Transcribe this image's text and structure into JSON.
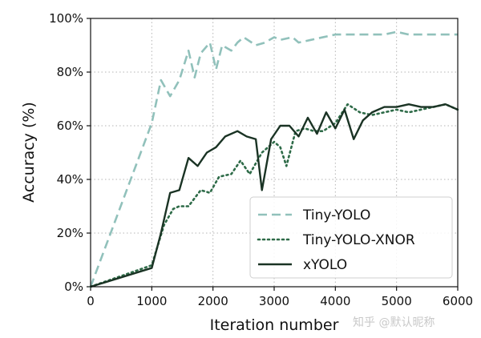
{
  "chart_data": {
    "type": "line",
    "title": "",
    "xlabel": "Iteration number",
    "ylabel": "Accuracy (%)",
    "xlim": [
      0,
      6000
    ],
    "ylim": [
      0,
      100
    ],
    "xticks": [
      0,
      1000,
      2000,
      3000,
      4000,
      5000,
      6000
    ],
    "yticks": [
      0,
      20,
      40,
      60,
      80,
      100
    ],
    "xtick_labels": [
      "0",
      "1000",
      "2000",
      "3000",
      "4000",
      "5000",
      "6000"
    ],
    "ytick_labels": [
      "0%",
      "20%",
      "40%",
      "60%",
      "80%",
      "100%"
    ],
    "grid": true,
    "legend_position": "bottom-right",
    "series": [
      {
        "name": "Tiny-YOLO",
        "color": "#91c1bb",
        "style": "dashed",
        "x": [
          0,
          1000,
          1150,
          1300,
          1450,
          1600,
          1700,
          1800,
          1950,
          2050,
          2150,
          2300,
          2400,
          2500,
          2700,
          2850,
          3000,
          3100,
          3300,
          3400,
          3600,
          3800,
          4000,
          4200,
          4400,
          4600,
          4800,
          5000,
          5200,
          5400,
          5600,
          5800,
          6000
        ],
        "y": [
          0,
          61,
          77,
          71,
          77,
          88,
          78,
          87,
          91,
          81,
          90,
          88,
          91,
          93,
          90,
          91,
          93,
          92,
          93,
          91,
          92,
          93,
          94,
          94,
          94,
          94,
          94,
          95,
          94,
          94,
          94,
          94,
          94
        ]
      },
      {
        "name": "Tiny-YOLO-XNOR",
        "color": "#2e6b48",
        "style": "dotted",
        "x": [
          0,
          1000,
          1200,
          1350,
          1450,
          1600,
          1700,
          1800,
          1950,
          2100,
          2300,
          2450,
          2600,
          2800,
          3000,
          3100,
          3200,
          3350,
          3500,
          3650,
          3800,
          4000,
          4200,
          4400,
          4600,
          4800,
          5000,
          5200,
          5400,
          5600,
          5800,
          6000
        ],
        "y": [
          0,
          8,
          23,
          29,
          30,
          30,
          33,
          36,
          35,
          41,
          42,
          47,
          42,
          50,
          54,
          52,
          45,
          58,
          59,
          58,
          58,
          61,
          68,
          65,
          64,
          65,
          66,
          65,
          66,
          67,
          68,
          66
        ]
      },
      {
        "name": "xYOLO",
        "color": "#1a3324",
        "style": "solid",
        "x": [
          0,
          1000,
          1150,
          1300,
          1450,
          1600,
          1750,
          1900,
          2050,
          2200,
          2400,
          2550,
          2700,
          2800,
          2950,
          3100,
          3250,
          3400,
          3550,
          3700,
          3850,
          4000,
          4150,
          4300,
          4450,
          4600,
          4800,
          5000,
          5200,
          5400,
          5600,
          5800,
          6000
        ],
        "y": [
          0,
          7,
          20,
          35,
          36,
          48,
          45,
          50,
          52,
          56,
          58,
          56,
          55,
          36,
          55,
          60,
          60,
          56,
          63,
          57,
          65,
          59,
          66,
          55,
          62,
          65,
          67,
          67,
          68,
          67,
          67,
          68,
          66
        ]
      }
    ]
  },
  "watermark": "知乎 @默认昵称"
}
